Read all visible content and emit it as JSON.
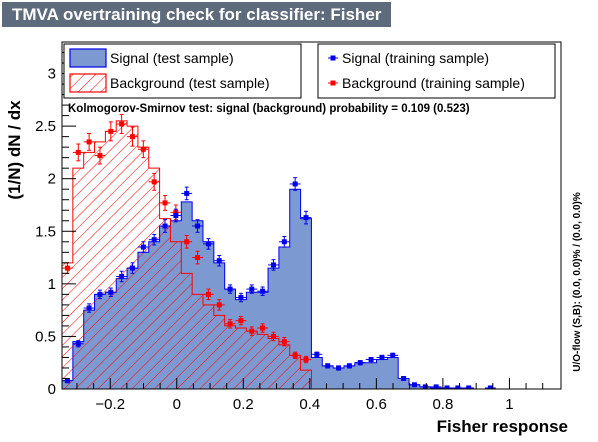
{
  "window": {
    "title": "TMVA overtraining check for classifier: Fisher"
  },
  "chart_data": {
    "type": "histogram",
    "title": "TMVA overtraining check for classifier: Fisher",
    "xlabel": "Fisher response",
    "ylabel": "(1/N) dN / dx",
    "right_label": "U/O-flow (S,B): (0.0, 0.0)% / (0.0, 0.0)%",
    "ks_text": "Kolmogorov-Smirnov test: signal (background) probability = 0.109 (0.523)",
    "xlim": [
      -0.345,
      1.155
    ],
    "ylim": [
      0,
      3.3
    ],
    "bin_width": 0.0326,
    "x_ticks": [
      -0.2,
      0,
      0.2,
      0.4,
      0.6,
      0.8,
      1
    ],
    "x_tick_labels": [
      "−0.2",
      "0",
      "0.2",
      "0.4",
      "0.6",
      "0.8",
      "1"
    ],
    "y_ticks": [
      0,
      0.5,
      1,
      1.5,
      2,
      2.5,
      3
    ],
    "y_tick_labels": [
      "0",
      "0.5",
      "1",
      "1.5",
      "2",
      "2.5",
      "3"
    ],
    "grid": false,
    "legend": [
      {
        "label": "Signal (test sample)",
        "style": "filled-blue"
      },
      {
        "label": "Background (test sample)",
        "style": "hatched-red"
      },
      {
        "label": "Signal (training sample)",
        "style": "marker-blue"
      },
      {
        "label": "Background (training sample)",
        "style": "marker-red"
      }
    ],
    "colors": {
      "signal_fill": "#7d99d1",
      "signal_line": "#0000ee",
      "background_line": "#ff0000",
      "title_bg": "#5d6b7d"
    },
    "series": [
      {
        "name": "Signal (test sample)",
        "kind": "hist",
        "values": [
          0.08,
          0.45,
          0.75,
          0.9,
          0.92,
          1.05,
          1.15,
          1.3,
          1.4,
          1.55,
          1.6,
          1.78,
          1.6,
          1.4,
          1.2,
          0.95,
          0.85,
          0.92,
          0.92,
          1.15,
          1.35,
          1.9,
          1.62,
          0.3,
          0.22,
          0.2,
          0.22,
          0.25,
          0.25,
          0.28,
          0.3,
          0.1,
          0.04,
          0.02,
          0.01,
          0.01,
          0.01,
          0.0,
          0.0,
          0.0,
          0.0,
          0.0,
          0.0,
          0.0,
          0.0,
          0.0
        ]
      },
      {
        "name": "Background (test sample)",
        "kind": "hist",
        "values": [
          1.2,
          2.1,
          2.25,
          2.35,
          2.45,
          2.55,
          2.5,
          2.3,
          2.1,
          1.62,
          1.4,
          1.1,
          0.9,
          0.8,
          0.7,
          0.6,
          0.58,
          0.55,
          0.52,
          0.48,
          0.42,
          0.32,
          0.18,
          0.0,
          0.0,
          0.0,
          0.0,
          0.0,
          0.0,
          0.0,
          0.0,
          0.0,
          0.0,
          0.0,
          0.0,
          0.0,
          0.0,
          0.0,
          0.0,
          0.0,
          0.0,
          0.0,
          0.0,
          0.0,
          0.0,
          0.0
        ]
      },
      {
        "name": "Signal (training sample)",
        "kind": "points",
        "values": [
          0.08,
          0.43,
          0.77,
          0.9,
          0.92,
          1.07,
          1.15,
          1.35,
          1.42,
          1.55,
          1.65,
          1.86,
          1.55,
          1.38,
          1.22,
          0.95,
          0.87,
          0.95,
          0.93,
          1.18,
          1.4,
          1.95,
          1.63,
          0.33,
          0.22,
          0.2,
          0.22,
          0.25,
          0.28,
          0.3,
          0.32,
          0.1,
          0.04,
          0.02,
          0.02,
          0.01,
          0.01,
          0.01,
          0.0,
          0.01,
          0.0,
          0.0,
          0.0,
          0.0,
          0.0,
          0.0
        ],
        "errors": [
          0.02,
          0.03,
          0.04,
          0.04,
          0.04,
          0.05,
          0.05,
          0.05,
          0.05,
          0.06,
          0.06,
          0.06,
          0.06,
          0.05,
          0.05,
          0.04,
          0.04,
          0.04,
          0.04,
          0.05,
          0.05,
          0.06,
          0.06,
          0.02,
          0.02,
          0.02,
          0.02,
          0.02,
          0.02,
          0.02,
          0.02,
          0.01,
          0.01,
          0.01,
          0.01,
          0.01,
          0.01,
          0.01,
          0.0,
          0.01,
          0.0,
          0.0,
          0.0,
          0.0,
          0.0,
          0.0
        ]
      },
      {
        "name": "Background (training sample)",
        "kind": "points",
        "values": [
          1.15,
          2.25,
          2.35,
          2.22,
          2.45,
          2.52,
          2.4,
          2.28,
          1.97,
          1.77,
          1.68,
          1.4,
          1.25,
          0.9,
          0.8,
          0.62,
          0.65,
          0.55,
          0.58,
          0.5,
          0.45,
          0.32,
          0.28,
          0.0,
          0.0,
          0.0,
          0.0,
          0.0,
          0.0,
          0.0,
          0.0,
          0.0,
          0.0,
          0.0,
          0.0,
          0.0,
          0.0,
          0.0,
          0.0,
          0.0,
          0.0,
          0.0,
          0.0,
          0.0,
          0.0,
          0.0
        ],
        "errors": [
          0.05,
          0.08,
          0.08,
          0.08,
          0.09,
          0.09,
          0.09,
          0.08,
          0.08,
          0.07,
          0.07,
          0.06,
          0.06,
          0.05,
          0.05,
          0.04,
          0.04,
          0.04,
          0.04,
          0.04,
          0.04,
          0.03,
          0.03,
          0.0,
          0.0,
          0.0,
          0.0,
          0.0,
          0.0,
          0.0,
          0.0,
          0.0,
          0.0,
          0.0,
          0.0,
          0.0,
          0.0,
          0.0,
          0.0,
          0.0,
          0.0,
          0.0,
          0.0,
          0.0,
          0.0,
          0.0
        ]
      }
    ]
  }
}
